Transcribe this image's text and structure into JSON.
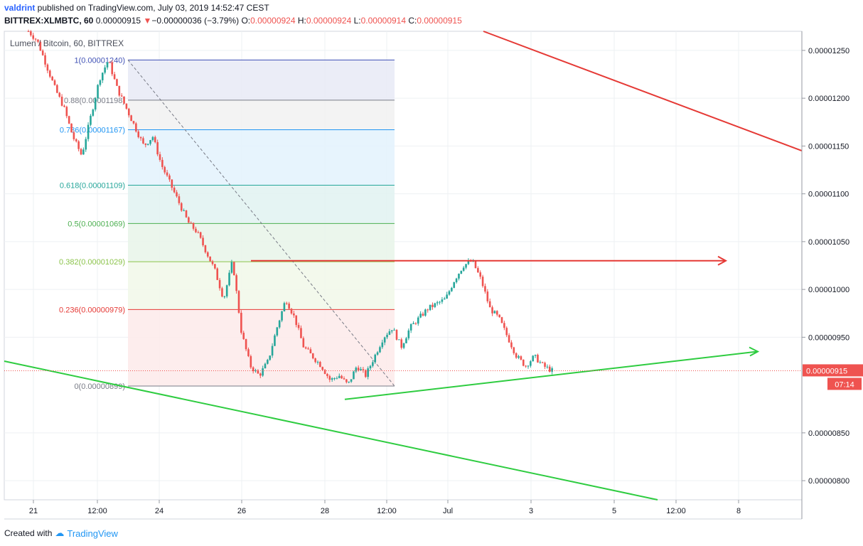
{
  "header": {
    "user": "valdrint",
    "published": " published on TradingView.com, July 03, 2019 14:52:47 CEST",
    "symbol": "BITTREX:XLMBTC, 60",
    "last": "0.00000915",
    "change_arrow": "▼",
    "change": "−0.00000036 (−3.79%)",
    "o_label": "O:",
    "o": "0.00000924",
    "h_label": "H:",
    "h": "0.00000924",
    "l_label": "L:",
    "l": "0.00000914",
    "c_label": "C:",
    "c": "0.00000915"
  },
  "chart_data": {
    "type": "candlestick",
    "title": "Lumen / Bitcoin, 60, BITTREX",
    "ylim": [
      7.8e-06,
      1.27e-05
    ],
    "y_ticks": [
      {
        "v": 1.25e-05,
        "label": "0.00001250"
      },
      {
        "v": 1.2e-05,
        "label": "0.00001200"
      },
      {
        "v": 1.15e-05,
        "label": "0.00001150"
      },
      {
        "v": 1.1e-05,
        "label": "0.00001100"
      },
      {
        "v": 1.05e-05,
        "label": "0.00001050"
      },
      {
        "v": 1e-05,
        "label": "0.00001000"
      },
      {
        "v": 9.5e-06,
        "label": "0.00000950"
      },
      {
        "v": 8.5e-06,
        "label": "0.00000850"
      },
      {
        "v": 8e-06,
        "label": "0.00000800"
      }
    ],
    "x_ticks": [
      "21",
      "12:00",
      "24",
      "26",
      "28",
      "12:00",
      "Jul",
      "3",
      "5",
      "12:00",
      "8"
    ],
    "price_path": [
      1.27e-05,
      1.26e-05,
      1.235e-05,
      1.21e-05,
      1.19e-05,
      1.16e-05,
      1.14e-05,
      1.18e-05,
      1.22e-05,
      1.24e-05,
      1.21e-05,
      1.19e-05,
      1.17e-05,
      1.15e-05,
      1.16e-05,
      1.13e-05,
      1.11e-05,
      1.09e-05,
      1.07e-05,
      1.06e-05,
      1.04e-05,
      1.02e-05,
      9.9e-06,
      1.03e-05,
      9.55e-06,
      9.2e-06,
      9.1e-06,
      9.25e-06,
      9.6e-06,
      9.9e-06,
      9.7e-06,
      9.4e-06,
      9.3e-06,
      9.2e-06,
      9.05e-06,
      9.1e-06,
      9e-06,
      9.2e-06,
      9.1e-06,
      9.3e-06,
      9.5e-06,
      9.6e-06,
      9.4e-06,
      9.6e-06,
      9.7e-06,
      9.8e-06,
      9.85e-06,
      9.9e-06,
      1.01e-05,
      1.025e-05,
      1.03e-05,
      1.01e-05,
      9.8e-06,
      9.7e-06,
      9.5e-06,
      9.3e-06,
      9.2e-06,
      9.3e-06,
      9.2e-06,
      9.15e-06
    ],
    "fibonacci": [
      {
        "ratio": "1",
        "price": "0.00001240",
        "value": 1.24e-05,
        "color": "#3f51b5"
      },
      {
        "ratio": "0.88",
        "price": "0.00001198",
        "value": 1.198e-05,
        "color": "#787b86"
      },
      {
        "ratio": "0.786",
        "price": "0.00001167",
        "value": 1.167e-05,
        "color": "#2196f3"
      },
      {
        "ratio": "0.618",
        "price": "0.00001109",
        "value": 1.109e-05,
        "color": "#26a69a"
      },
      {
        "ratio": "0.5",
        "price": "0.00001069",
        "value": 1.069e-05,
        "color": "#4caf50"
      },
      {
        "ratio": "0.382",
        "price": "0.00001029",
        "value": 1.029e-05,
        "color": "#8bc34a"
      },
      {
        "ratio": "0.236",
        "price": "0.00000979",
        "value": 9.79e-06,
        "color": "#e53935"
      },
      {
        "ratio": "0",
        "price": "0.00000899",
        "value": 8.99e-06,
        "color": "#787b86"
      }
    ],
    "last_price_label": "0.00000915",
    "last_price": 9.15e-06,
    "countdown": "07:14",
    "colors": {
      "up": "#26a69a",
      "down": "#ef5350",
      "resistance": "#e53935",
      "support": "#2ecc40"
    }
  },
  "footer": {
    "created": "Created with",
    "brand": "TradingView"
  }
}
